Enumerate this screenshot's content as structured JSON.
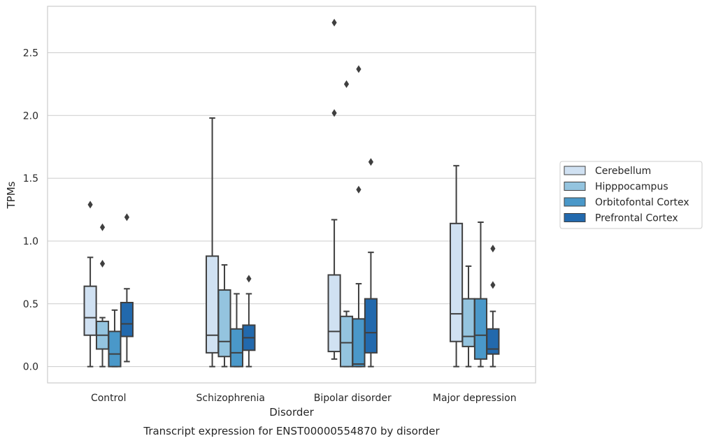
{
  "caption": "Transcript expression for ENST00000554870 by disorder",
  "chart_data": {
    "type": "box",
    "xlabel": "Disorder",
    "ylabel": "TPMs",
    "ylim": [
      -0.13,
      2.87
    ],
    "yticks": [
      "0.0",
      "0.5",
      "1.0",
      "1.5",
      "2.0",
      "2.5"
    ],
    "categories": [
      "Control",
      "Schizophrenia",
      "Bipolar disorder",
      "Major depression"
    ],
    "grid": "horizontal",
    "legend_position": "right",
    "series": [
      {
        "name": "Cerebellum",
        "color": "#d0e1f2",
        "boxes": [
          {
            "whislo": 0.0,
            "q1": 0.25,
            "med": 0.39,
            "q3": 0.64,
            "whishi": 0.87,
            "fliers": [
              1.29
            ]
          },
          {
            "whislo": 0.0,
            "q1": 0.11,
            "med": 0.25,
            "q3": 0.88,
            "whishi": 1.98,
            "fliers": []
          },
          {
            "whislo": 0.06,
            "q1": 0.12,
            "med": 0.28,
            "q3": 0.73,
            "whishi": 1.17,
            "fliers": [
              2.02,
              2.74
            ]
          },
          {
            "whislo": 0.0,
            "q1": 0.2,
            "med": 0.42,
            "q3": 1.14,
            "whishi": 1.6,
            "fliers": []
          }
        ]
      },
      {
        "name": "Hipppocampus",
        "color": "#94c4df",
        "boxes": [
          {
            "whislo": 0.0,
            "q1": 0.14,
            "med": 0.25,
            "q3": 0.36,
            "whishi": 0.39,
            "fliers": [
              0.82,
              1.11
            ]
          },
          {
            "whislo": 0.0,
            "q1": 0.08,
            "med": 0.2,
            "q3": 0.61,
            "whishi": 0.81,
            "fliers": []
          },
          {
            "whislo": 0.0,
            "q1": 0.0,
            "med": 0.19,
            "q3": 0.4,
            "whishi": 0.44,
            "fliers": [
              2.25
            ]
          },
          {
            "whislo": 0.0,
            "q1": 0.16,
            "med": 0.24,
            "q3": 0.54,
            "whishi": 0.8,
            "fliers": []
          }
        ]
      },
      {
        "name": "Orbitofontal Cortex",
        "color": "#4a98c9",
        "boxes": [
          {
            "whislo": 0.0,
            "q1": 0.0,
            "med": 0.1,
            "q3": 0.28,
            "whishi": 0.45,
            "fliers": []
          },
          {
            "whislo": 0.0,
            "q1": 0.0,
            "med": 0.11,
            "q3": 0.3,
            "whishi": 0.58,
            "fliers": []
          },
          {
            "whislo": 0.0,
            "q1": 0.0,
            "med": 0.02,
            "q3": 0.38,
            "whishi": 0.66,
            "fliers": [
              1.41,
              2.37
            ]
          },
          {
            "whislo": 0.0,
            "q1": 0.06,
            "med": 0.25,
            "q3": 0.54,
            "whishi": 1.15,
            "fliers": []
          }
        ]
      },
      {
        "name": "Prefrontal Cortex",
        "color": "#2269ad",
        "boxes": [
          {
            "whislo": 0.04,
            "q1": 0.24,
            "med": 0.34,
            "q3": 0.51,
            "whishi": 0.62,
            "fliers": [
              1.19
            ]
          },
          {
            "whislo": 0.0,
            "q1": 0.13,
            "med": 0.23,
            "q3": 0.33,
            "whishi": 0.58,
            "fliers": [
              0.7
            ]
          },
          {
            "whislo": 0.0,
            "q1": 0.11,
            "med": 0.27,
            "q3": 0.54,
            "whishi": 0.91,
            "fliers": [
              1.63
            ]
          },
          {
            "whislo": 0.0,
            "q1": 0.1,
            "med": 0.14,
            "q3": 0.3,
            "whishi": 0.44,
            "fliers": [
              0.65,
              0.94
            ]
          }
        ]
      }
    ]
  }
}
